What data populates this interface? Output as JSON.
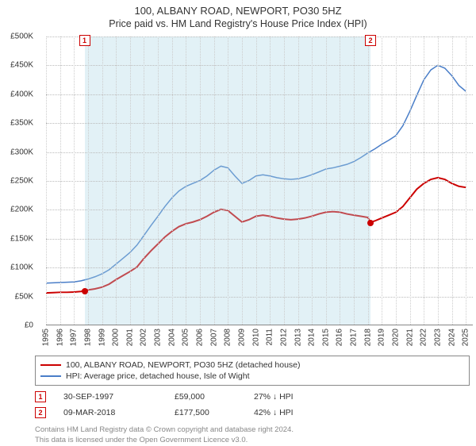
{
  "title_line1": "100, ALBANY ROAD, NEWPORT, PO30 5HZ",
  "title_line2": "Price paid vs. HM Land Registry's House Price Index (HPI)",
  "chart": {
    "type": "line",
    "background_color": "#ffffff",
    "grid_color": "#cccccc",
    "shade_color": "rgba(173,216,230,0.35)",
    "x": {
      "min": 1995,
      "max": 2025.5,
      "ticks": [
        1995,
        1996,
        1997,
        1998,
        1999,
        2000,
        2001,
        2002,
        2003,
        2004,
        2005,
        2006,
        2007,
        2008,
        2009,
        2010,
        2011,
        2012,
        2013,
        2014,
        2015,
        2016,
        2017,
        2018,
        2019,
        2020,
        2021,
        2022,
        2023,
        2024,
        2025
      ],
      "tick_labels": [
        "1995",
        "1996",
        "1997",
        "1998",
        "1999",
        "2000",
        "2001",
        "2002",
        "2003",
        "2004",
        "2005",
        "2006",
        "2007",
        "2008",
        "2009",
        "2010",
        "2011",
        "2012",
        "2013",
        "2014",
        "2015",
        "2016",
        "2017",
        "2018",
        "2019",
        "2020",
        "2021",
        "2022",
        "2023",
        "2024",
        "2025"
      ]
    },
    "y": {
      "min": 0,
      "max": 500000,
      "ticks": [
        0,
        50000,
        100000,
        150000,
        200000,
        250000,
        300000,
        350000,
        400000,
        450000,
        500000
      ],
      "tick_labels": [
        "£0",
        "£50K",
        "£100K",
        "£150K",
        "£200K",
        "£250K",
        "£300K",
        "£350K",
        "£400K",
        "£450K",
        "£500K"
      ]
    },
    "shaded_range": {
      "from": 1997.75,
      "to": 2018.2
    },
    "series": [
      {
        "name": "property",
        "label": "100, ALBANY ROAD, NEWPORT, PO30 5HZ (detached house)",
        "color": "#cc0000",
        "width": 2,
        "points": [
          [
            1995.0,
            55000
          ],
          [
            1995.5,
            55500
          ],
          [
            1996.0,
            56000
          ],
          [
            1996.5,
            56000
          ],
          [
            1997.0,
            56500
          ],
          [
            1997.5,
            57500
          ],
          [
            1997.75,
            59000
          ],
          [
            1998.0,
            60000
          ],
          [
            1998.5,
            62000
          ],
          [
            1999.0,
            65000
          ],
          [
            1999.5,
            70000
          ],
          [
            2000.0,
            78000
          ],
          [
            2000.5,
            85000
          ],
          [
            2001.0,
            92000
          ],
          [
            2001.5,
            100000
          ],
          [
            2002.0,
            115000
          ],
          [
            2002.5,
            128000
          ],
          [
            2003.0,
            140000
          ],
          [
            2003.5,
            152000
          ],
          [
            2004.0,
            162000
          ],
          [
            2004.5,
            170000
          ],
          [
            2005.0,
            175000
          ],
          [
            2005.5,
            178000
          ],
          [
            2006.0,
            182000
          ],
          [
            2006.5,
            188000
          ],
          [
            2007.0,
            195000
          ],
          [
            2007.5,
            200000
          ],
          [
            2008.0,
            198000
          ],
          [
            2008.5,
            188000
          ],
          [
            2009.0,
            178000
          ],
          [
            2009.5,
            182000
          ],
          [
            2010.0,
            188000
          ],
          [
            2010.5,
            190000
          ],
          [
            2011.0,
            188000
          ],
          [
            2011.5,
            185000
          ],
          [
            2012.0,
            183000
          ],
          [
            2012.5,
            182000
          ],
          [
            2013.0,
            183000
          ],
          [
            2013.5,
            185000
          ],
          [
            2014.0,
            188000
          ],
          [
            2014.5,
            192000
          ],
          [
            2015.0,
            195000
          ],
          [
            2015.5,
            196000
          ],
          [
            2016.0,
            195000
          ],
          [
            2016.5,
            192000
          ],
          [
            2017.0,
            190000
          ],
          [
            2017.5,
            188000
          ],
          [
            2018.0,
            186000
          ],
          [
            2018.19,
            177500
          ],
          [
            2018.2,
            177500
          ],
          [
            2018.5,
            180000
          ],
          [
            2019.0,
            185000
          ],
          [
            2019.5,
            190000
          ],
          [
            2020.0,
            195000
          ],
          [
            2020.5,
            205000
          ],
          [
            2021.0,
            220000
          ],
          [
            2021.5,
            235000
          ],
          [
            2022.0,
            245000
          ],
          [
            2022.5,
            252000
          ],
          [
            2023.0,
            255000
          ],
          [
            2023.5,
            252000
          ],
          [
            2024.0,
            245000
          ],
          [
            2024.5,
            240000
          ],
          [
            2025.0,
            238000
          ]
        ]
      },
      {
        "name": "hpi",
        "label": "HPI: Average price, detached house, Isle of Wight",
        "color": "#4a7ec8",
        "width": 1.5,
        "points": [
          [
            1995.0,
            72000
          ],
          [
            1995.5,
            72500
          ],
          [
            1996.0,
            73000
          ],
          [
            1996.5,
            73500
          ],
          [
            1997.0,
            74000
          ],
          [
            1997.5,
            76000
          ],
          [
            1998.0,
            79000
          ],
          [
            1998.5,
            83000
          ],
          [
            1999.0,
            88000
          ],
          [
            1999.5,
            95000
          ],
          [
            2000.0,
            105000
          ],
          [
            2000.5,
            115000
          ],
          [
            2001.0,
            125000
          ],
          [
            2001.5,
            138000
          ],
          [
            2002.0,
            155000
          ],
          [
            2002.5,
            172000
          ],
          [
            2003.0,
            188000
          ],
          [
            2003.5,
            205000
          ],
          [
            2004.0,
            220000
          ],
          [
            2004.5,
            232000
          ],
          [
            2005.0,
            240000
          ],
          [
            2005.5,
            245000
          ],
          [
            2006.0,
            250000
          ],
          [
            2006.5,
            258000
          ],
          [
            2007.0,
            268000
          ],
          [
            2007.5,
            275000
          ],
          [
            2008.0,
            272000
          ],
          [
            2008.5,
            258000
          ],
          [
            2009.0,
            245000
          ],
          [
            2009.5,
            250000
          ],
          [
            2010.0,
            258000
          ],
          [
            2010.5,
            260000
          ],
          [
            2011.0,
            258000
          ],
          [
            2011.5,
            255000
          ],
          [
            2012.0,
            253000
          ],
          [
            2012.5,
            252000
          ],
          [
            2013.0,
            253000
          ],
          [
            2013.5,
            256000
          ],
          [
            2014.0,
            260000
          ],
          [
            2014.5,
            265000
          ],
          [
            2015.0,
            270000
          ],
          [
            2015.5,
            272000
          ],
          [
            2016.0,
            275000
          ],
          [
            2016.5,
            278000
          ],
          [
            2017.0,
            283000
          ],
          [
            2017.5,
            290000
          ],
          [
            2018.0,
            298000
          ],
          [
            2018.5,
            305000
          ],
          [
            2019.0,
            313000
          ],
          [
            2019.5,
            320000
          ],
          [
            2020.0,
            328000
          ],
          [
            2020.5,
            345000
          ],
          [
            2021.0,
            370000
          ],
          [
            2021.5,
            398000
          ],
          [
            2022.0,
            425000
          ],
          [
            2022.5,
            442000
          ],
          [
            2023.0,
            450000
          ],
          [
            2023.5,
            445000
          ],
          [
            2024.0,
            432000
          ],
          [
            2024.5,
            415000
          ],
          [
            2025.0,
            405000
          ]
        ]
      }
    ],
    "sale_markers": [
      {
        "n": "1",
        "x": 1997.75,
        "price": 59000,
        "color": "#cc0000"
      },
      {
        "n": "2",
        "x": 2018.19,
        "price": 177500,
        "color": "#cc0000"
      }
    ]
  },
  "legend": {
    "items": [
      {
        "color": "#cc0000",
        "label": "100, ALBANY ROAD, NEWPORT, PO30 5HZ (detached house)"
      },
      {
        "color": "#4a7ec8",
        "label": "HPI: Average price, detached house, Isle of Wight"
      }
    ]
  },
  "sales": [
    {
      "n": "1",
      "date": "30-SEP-1997",
      "price": "£59,000",
      "diff": "27% ↓ HPI"
    },
    {
      "n": "2",
      "date": "09-MAR-2018",
      "price": "£177,500",
      "diff": "42% ↓ HPI"
    }
  ],
  "footer_line1": "Contains HM Land Registry data © Crown copyright and database right 2024.",
  "footer_line2": "This data is licensed under the Open Government Licence v3.0."
}
